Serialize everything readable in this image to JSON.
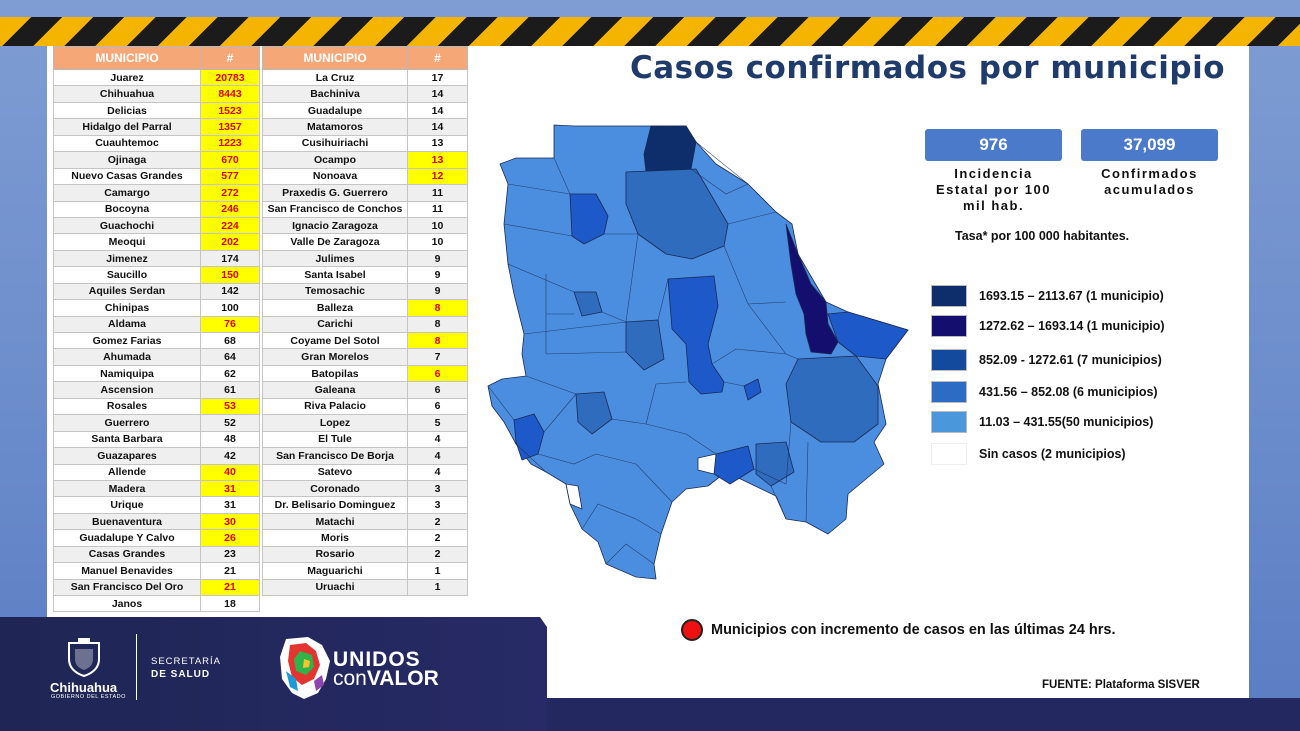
{
  "title": "Casos confirmados por municipio",
  "stats": {
    "incidence_value": "976",
    "incidence_label_1": "Incidencia",
    "incidence_label_2": "Estatal por 100",
    "incidence_label_3": "mil hab.",
    "confirmed_value": "37,099",
    "confirmed_label_1": "Confirmados",
    "confirmed_label_2": "acumulados",
    "rate_note": "Tasa* por 100 000 habitantes."
  },
  "table_headers": {
    "municipio": "MUNICIPIO",
    "count": "#"
  },
  "table_left": [
    {
      "name": "Juarez",
      "count": "20783",
      "hl": true
    },
    {
      "name": "Chihuahua",
      "count": "8443",
      "hl": true
    },
    {
      "name": "Delicias",
      "count": "1523",
      "hl": true
    },
    {
      "name": "Hidalgo del Parral",
      "count": "1357",
      "hl": true
    },
    {
      "name": "Cuauhtemoc",
      "count": "1223",
      "hl": true
    },
    {
      "name": "Ojinaga",
      "count": "670",
      "hl": true
    },
    {
      "name": "Nuevo Casas Grandes",
      "count": "577",
      "hl": true
    },
    {
      "name": "Camargo",
      "count": "272",
      "hl": true
    },
    {
      "name": "Bocoyna",
      "count": "246",
      "hl": true
    },
    {
      "name": "Guachochi",
      "count": "224",
      "hl": true
    },
    {
      "name": "Meoqui",
      "count": "202",
      "hl": true
    },
    {
      "name": "Jimenez",
      "count": "174",
      "hl": false
    },
    {
      "name": "Saucillo",
      "count": "150",
      "hl": true
    },
    {
      "name": "Aquiles Serdan",
      "count": "142",
      "hl": false
    },
    {
      "name": "Chinipas",
      "count": "100",
      "hl": false
    },
    {
      "name": "Aldama",
      "count": "76",
      "hl": true
    },
    {
      "name": "Gomez Farias",
      "count": "68",
      "hl": false
    },
    {
      "name": "Ahumada",
      "count": "64",
      "hl": false
    },
    {
      "name": "Namiquipa",
      "count": "62",
      "hl": false
    },
    {
      "name": "Ascension",
      "count": "61",
      "hl": false
    },
    {
      "name": "Rosales",
      "count": "53",
      "hl": true
    },
    {
      "name": "Guerrero",
      "count": "52",
      "hl": false
    },
    {
      "name": "Santa Barbara",
      "count": "48",
      "hl": false
    },
    {
      "name": "Guazapares",
      "count": "42",
      "hl": false
    },
    {
      "name": "Allende",
      "count": "40",
      "hl": true
    },
    {
      "name": "Madera",
      "count": "31",
      "hl": true
    },
    {
      "name": "Urique",
      "count": "31",
      "hl": false
    },
    {
      "name": "Buenaventura",
      "count": "30",
      "hl": true
    },
    {
      "name": "Guadalupe Y Calvo",
      "count": "26",
      "hl": true
    },
    {
      "name": "Casas Grandes",
      "count": "23",
      "hl": false
    },
    {
      "name": "Manuel Benavides",
      "count": "21",
      "hl": false
    },
    {
      "name": "San Francisco Del Oro",
      "count": "21",
      "hl": true
    },
    {
      "name": "Janos",
      "count": "18",
      "hl": false
    }
  ],
  "table_right": [
    {
      "name": "La Cruz",
      "count": "17",
      "hl": false
    },
    {
      "name": "Bachiniva",
      "count": "14",
      "hl": false
    },
    {
      "name": "Guadalupe",
      "count": "14",
      "hl": false
    },
    {
      "name": "Matamoros",
      "count": "14",
      "hl": false
    },
    {
      "name": "Cusihuiriachi",
      "count": "13",
      "hl": false
    },
    {
      "name": "Ocampo",
      "count": "13",
      "hl": true
    },
    {
      "name": "Nonoava",
      "count": "12",
      "hl": true
    },
    {
      "name": "Praxedis G. Guerrero",
      "count": "11",
      "hl": false
    },
    {
      "name": "San Francisco de Conchos",
      "count": "11",
      "hl": false
    },
    {
      "name": "Ignacio Zaragoza",
      "count": "10",
      "hl": false
    },
    {
      "name": "Valle De Zaragoza",
      "count": "10",
      "hl": false
    },
    {
      "name": "Julimes",
      "count": "9",
      "hl": false
    },
    {
      "name": "Santa Isabel",
      "count": "9",
      "hl": false
    },
    {
      "name": "Temosachic",
      "count": "9",
      "hl": false
    },
    {
      "name": "Balleza",
      "count": "8",
      "hl": true
    },
    {
      "name": "Carichi",
      "count": "8",
      "hl": false
    },
    {
      "name": "Coyame Del Sotol",
      "count": "8",
      "hl": true
    },
    {
      "name": "Gran Morelos",
      "count": "7",
      "hl": false
    },
    {
      "name": "Batopilas",
      "count": "6",
      "hl": true
    },
    {
      "name": "Galeana",
      "count": "6",
      "hl": false
    },
    {
      "name": "Riva Palacio",
      "count": "6",
      "hl": false
    },
    {
      "name": "Lopez",
      "count": "5",
      "hl": false
    },
    {
      "name": "El Tule",
      "count": "4",
      "hl": false
    },
    {
      "name": "San Francisco De Borja",
      "count": "4",
      "hl": false
    },
    {
      "name": "Satevo",
      "count": "4",
      "hl": false
    },
    {
      "name": "Coronado",
      "count": "3",
      "hl": false
    },
    {
      "name": "Dr. Belisario Dominguez",
      "count": "3",
      "hl": false
    },
    {
      "name": "Matachi",
      "count": "2",
      "hl": false
    },
    {
      "name": "Moris",
      "count": "2",
      "hl": false
    },
    {
      "name": "Rosario",
      "count": "2",
      "hl": false
    },
    {
      "name": "Maguarichi",
      "count": "1",
      "hl": false
    },
    {
      "name": "Uruachi",
      "count": "1",
      "hl": false
    }
  ],
  "legend": [
    {
      "label": "1693.15 – 2113.67 (1 municipio)",
      "color": "#0d2d6b"
    },
    {
      "label": "1272.62 – 1693.14 (1 municipio)",
      "color": "#140e6e"
    },
    {
      "label": "852.09  -  1272.61 (7 municipios)",
      "color": "#134a9e"
    },
    {
      "label": "431.56 – 852.08 (6 municipios)",
      "color": "#2c6cc4"
    },
    {
      "label": "11.03 – 431.55(50 municipios)",
      "color": "#4b97db"
    },
    {
      "label": "Sin casos (2 municipios)",
      "color": "#ffffff"
    }
  ],
  "increment_note": "Municipios con incremento de casos en las últimas 24 hrs.",
  "source": "FUENTE: Plataforma SISVER",
  "footer": {
    "state_name": "Chihuahua",
    "state_sub": "GOBIERNO DEL ESTADO",
    "sec_line1": "SECRETARÍA",
    "sec_line2": "DE SALUD",
    "campaign_1": "UNIDOS",
    "campaign_2a": "con",
    "campaign_2b": "VALOR"
  },
  "colors": {
    "header_orange": "#f5a777",
    "highlight_yellow": "#ffff00",
    "title_navy": "#1f3b6c",
    "stat_blue": "#4a7ac9"
  }
}
